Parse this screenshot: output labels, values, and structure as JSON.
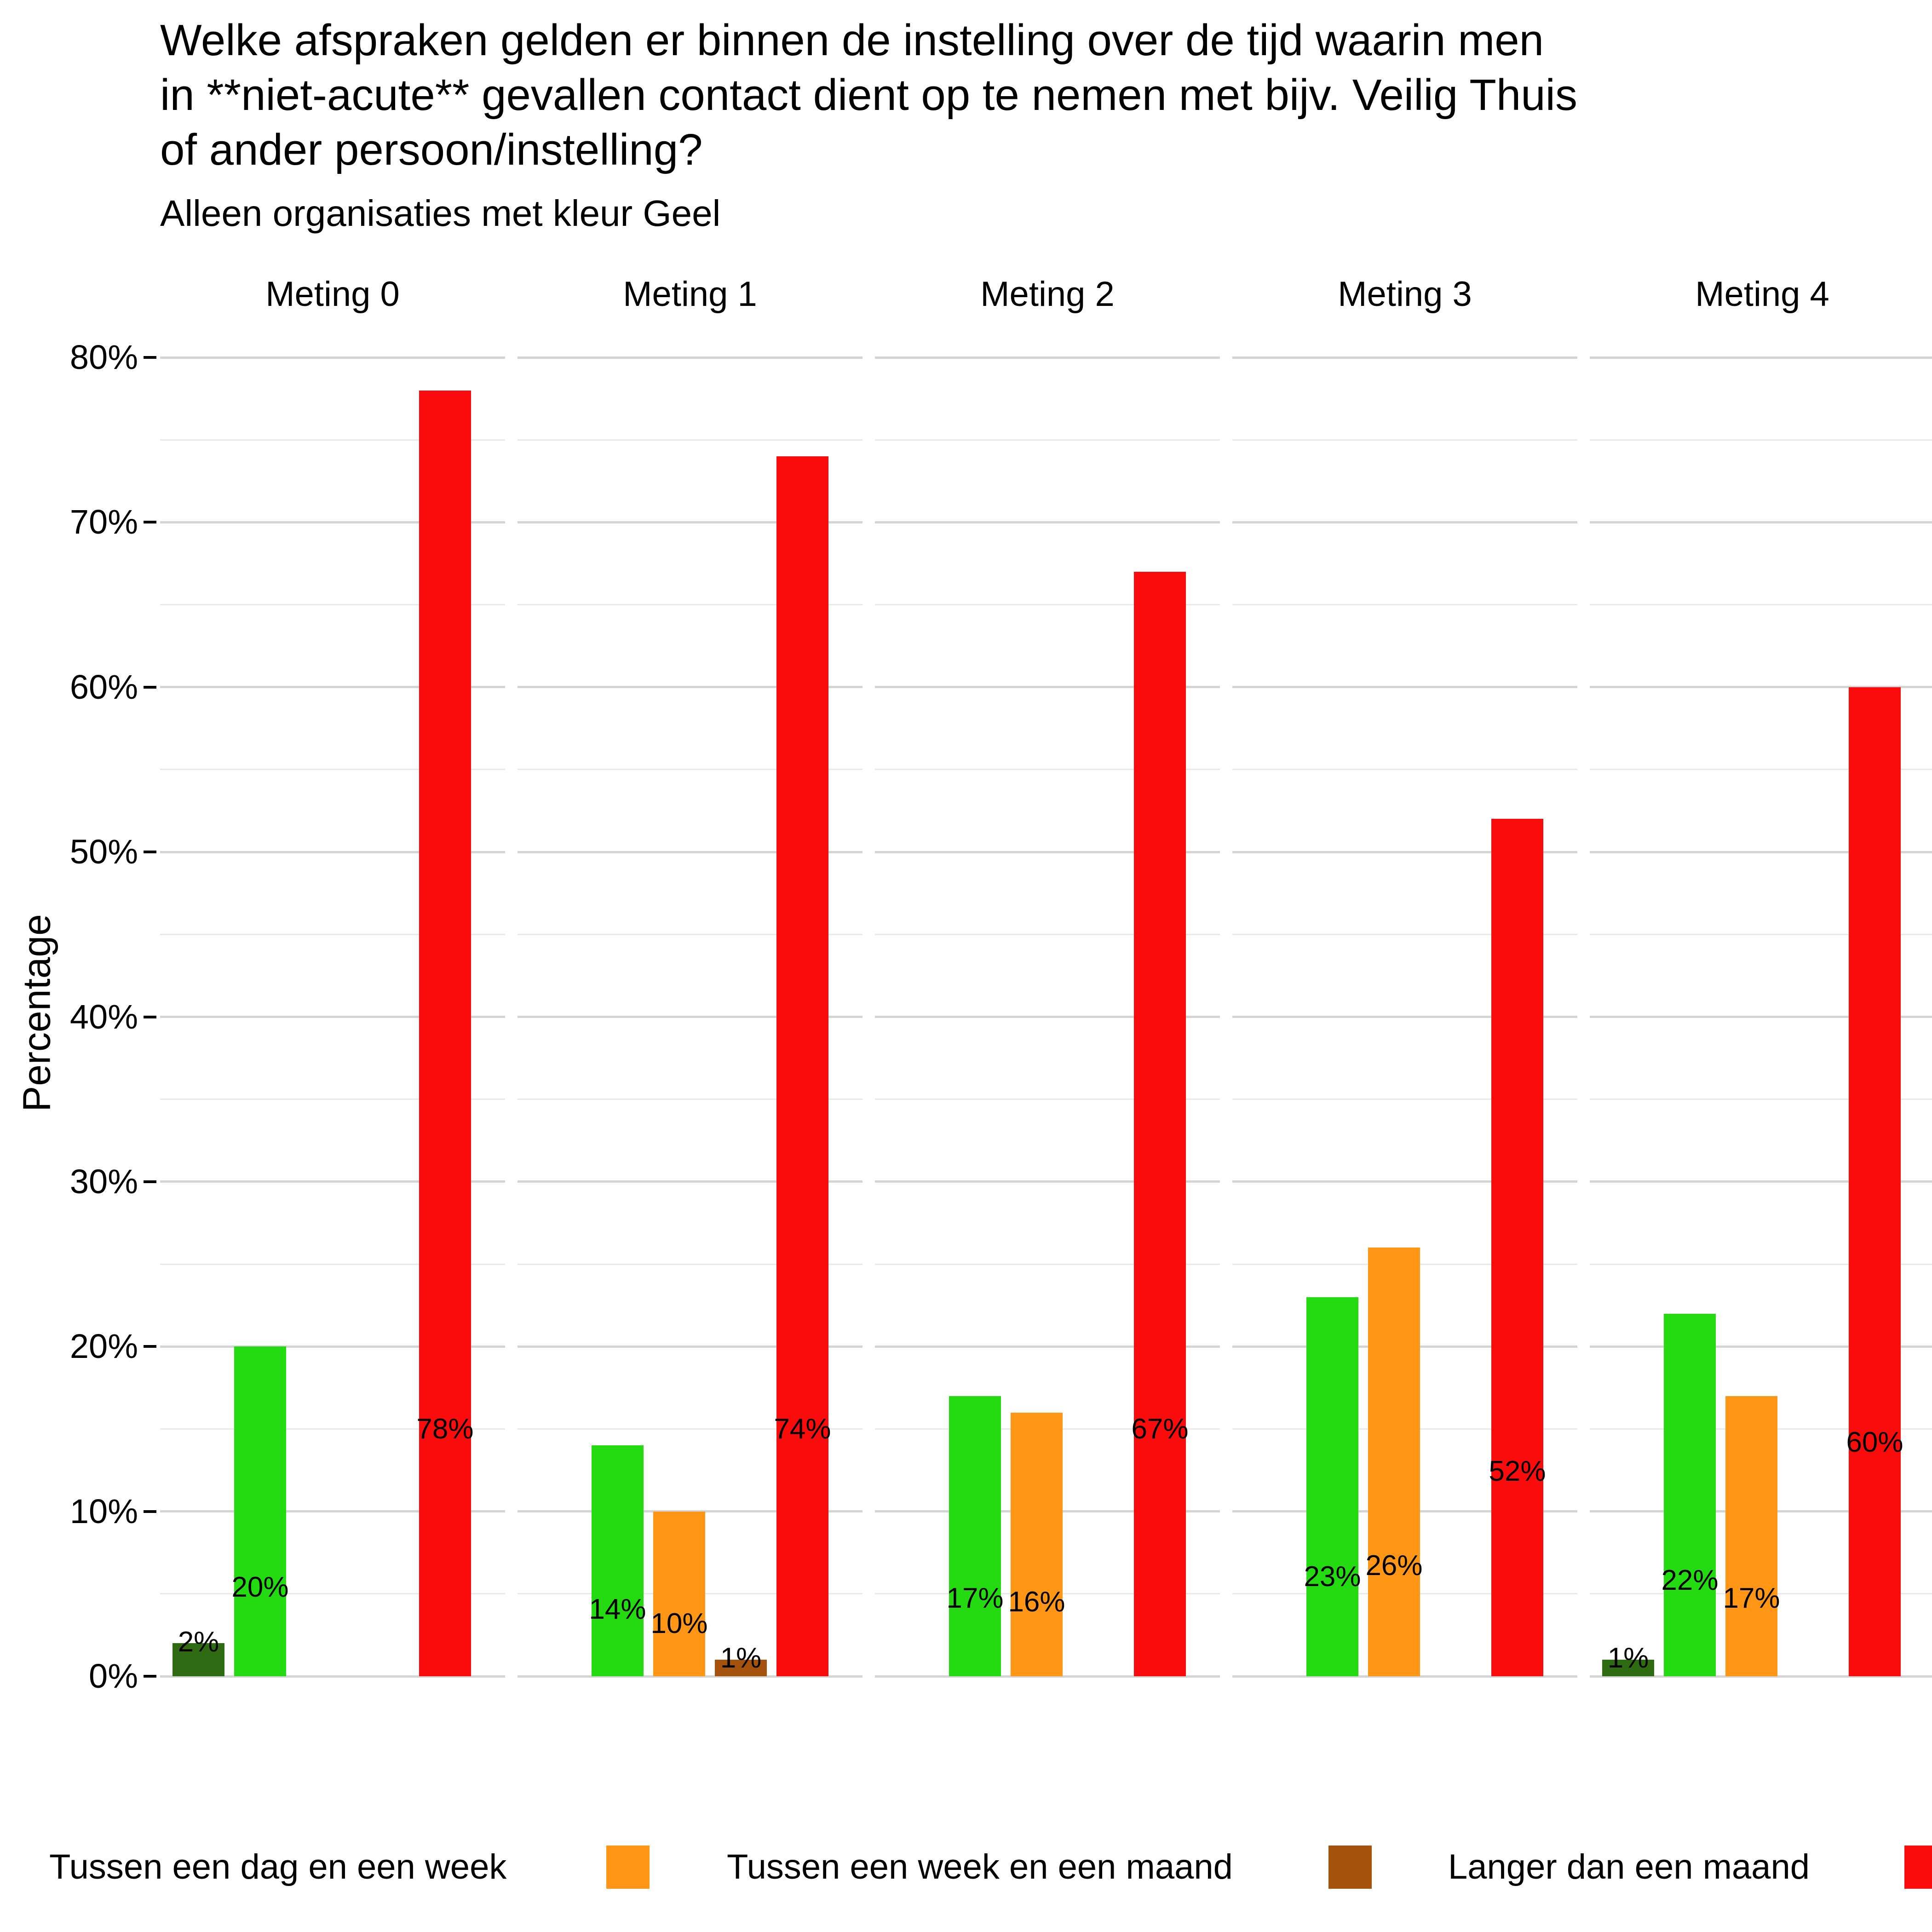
{
  "title": "Welke afspraken gelden er binnen de instelling over de tijd waarin men\nin **niet-acute** gevallen contact dient op te nemen met bijv. Veilig Thuis\nof ander persoon/instelling?",
  "subtitle": "Alleen organisaties met kleur Geel",
  "y_axis": {
    "title": "Percentage",
    "ticks": [
      "0%",
      "10%",
      "20%",
      "30%",
      "40%",
      "50%",
      "60%",
      "70%",
      "80%"
    ]
  },
  "legend": {
    "items": [
      {
        "label": "Tussen een dag en een week",
        "color": null
      },
      {
        "label": "Tussen een week en een maand",
        "color": "#FF9615"
      },
      {
        "label": "Langer dan een maand",
        "color": "#A5520D"
      },
      {
        "label": "",
        "color": "#FB0C0C"
      }
    ]
  },
  "colors": {
    "background": "#FFFFFF",
    "grid_major": "#D4D4D4",
    "grid_minor": "#E9E9E9",
    "axis_text": "#000000"
  },
  "chart_data": {
    "type": "bar",
    "title": "Welke afspraken gelden er binnen de instelling over de tijd waarin men in **niet-acute** gevallen contact dient op te nemen met bijv. Veilig Thuis of ander persoon/instelling?",
    "subtitle": "Alleen organisaties met kleur Geel",
    "ylabel": "Percentage",
    "xlabel": "",
    "ylim": [
      0,
      80
    ],
    "grid": "major every 10%, minor every 5%",
    "legend_position": "bottom",
    "facets": [
      "Meting 0",
      "Meting 1",
      "Meting 2",
      "Meting 3",
      "Meting 4"
    ],
    "series": [
      {
        "key": "darkgreen",
        "name": "dark green series (legend label cut off)",
        "color": "#2E6B12",
        "slot": 0,
        "values": [
          2,
          null,
          null,
          null,
          1
        ],
        "labels": [
          "2%",
          null,
          null,
          null,
          "1%"
        ]
      },
      {
        "key": "green",
        "name": "Tussen een dag en een week",
        "color": "#24DB12",
        "slot": 1,
        "values": [
          20,
          14,
          17,
          23,
          22
        ],
        "labels": [
          "20%",
          "14%",
          "17%",
          "23%",
          "22%"
        ]
      },
      {
        "key": "orange",
        "name": "Tussen een week en een maand",
        "color": "#FF9615",
        "slot": 2,
        "values": [
          null,
          10,
          16,
          26,
          17
        ],
        "labels": [
          null,
          "10%",
          "16%",
          "26%",
          "17%"
        ]
      },
      {
        "key": "brown",
        "name": "Langer dan een maand",
        "color": "#A5520D",
        "slot": 3,
        "values": [
          null,
          1,
          null,
          null,
          null
        ],
        "labels": [
          null,
          "1%",
          null,
          null,
          null
        ]
      },
      {
        "key": "red",
        "name": "red series (legend label cut off)",
        "color": "#FB0C0C",
        "slot": 4,
        "values": [
          78,
          74,
          67,
          52,
          60
        ],
        "labels": [
          "78%",
          "74%",
          "67%",
          "52%",
          "60%"
        ]
      }
    ]
  }
}
